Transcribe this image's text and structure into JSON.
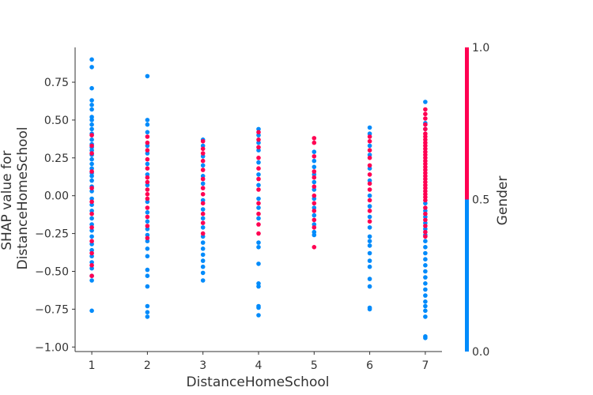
{
  "chart_data": {
    "type": "scatter",
    "xlabel": "DistanceHomeSchool",
    "ylabel": "SHAP value for\nDistanceHomeSchool",
    "xticks": [
      1,
      2,
      3,
      4,
      5,
      6,
      7
    ],
    "yticks": [
      -1.0,
      -0.75,
      -0.5,
      -0.25,
      0.0,
      0.25,
      0.5,
      0.75
    ],
    "ytick_labels": [
      "−1.00",
      "−0.75",
      "−0.50",
      "−0.25",
      "0.00",
      "0.25",
      "0.50",
      "0.75"
    ],
    "xlim": [
      0.7,
      7.3
    ],
    "ylim": [
      -1.03,
      0.98
    ],
    "colorbar": {
      "label": "Gender",
      "ticks": [
        0.0,
        0.5,
        1.0
      ],
      "tick_labels": [
        "0.0",
        "0.5",
        "1.0"
      ],
      "low_color": "#008bfb",
      "high_color": "#ff0052"
    },
    "series": [
      {
        "gender": 0,
        "points": [
          [
            1,
            0.9
          ],
          [
            1,
            0.85
          ],
          [
            1,
            0.71
          ],
          [
            1,
            0.63
          ],
          [
            1,
            0.6
          ],
          [
            1,
            0.57
          ],
          [
            1,
            0.52
          ],
          [
            1,
            0.5
          ],
          [
            1,
            0.47
          ],
          [
            1,
            0.44
          ],
          [
            1,
            0.41
          ],
          [
            1,
            0.37
          ],
          [
            1,
            0.34
          ],
          [
            1,
            0.32
          ],
          [
            1,
            0.3
          ],
          [
            1,
            0.27
          ],
          [
            1,
            0.24
          ],
          [
            1,
            0.21
          ],
          [
            1,
            0.18
          ],
          [
            1,
            0.15
          ],
          [
            1,
            0.13
          ],
          [
            1,
            0.1
          ],
          [
            1,
            0.06
          ],
          [
            1,
            0.03
          ],
          [
            1,
            -0.02
          ],
          [
            1,
            -0.06
          ],
          [
            1,
            -0.1
          ],
          [
            1,
            -0.15
          ],
          [
            1,
            -0.19
          ],
          [
            1,
            -0.23
          ],
          [
            1,
            -0.27
          ],
          [
            1,
            -0.32
          ],
          [
            1,
            -0.36
          ],
          [
            1,
            -0.4
          ],
          [
            1,
            -0.44
          ],
          [
            1,
            -0.48
          ],
          [
            1,
            -0.53
          ],
          [
            1,
            -0.56
          ],
          [
            1,
            -0.76
          ],
          [
            2,
            0.79
          ],
          [
            2,
            0.5
          ],
          [
            2,
            0.47
          ],
          [
            2,
            0.42
          ],
          [
            2,
            0.33
          ],
          [
            2,
            0.28
          ],
          [
            2,
            0.21
          ],
          [
            2,
            0.14
          ],
          [
            2,
            0.07
          ],
          [
            2,
            -0.04
          ],
          [
            2,
            -0.11
          ],
          [
            2,
            -0.17
          ],
          [
            2,
            -0.22
          ],
          [
            2,
            -0.26
          ],
          [
            2,
            -0.3
          ],
          [
            2,
            -0.35
          ],
          [
            2,
            -0.4
          ],
          [
            2,
            -0.49
          ],
          [
            2,
            -0.53
          ],
          [
            2,
            -0.6
          ],
          [
            2,
            -0.73
          ],
          [
            2,
            -0.77
          ],
          [
            2,
            -0.8
          ],
          [
            3,
            0.37
          ],
          [
            3,
            0.33
          ],
          [
            3,
            0.26
          ],
          [
            3,
            0.2
          ],
          [
            3,
            0.13
          ],
          [
            3,
            0.08
          ],
          [
            3,
            -0.03
          ],
          [
            3,
            -0.09
          ],
          [
            3,
            -0.15
          ],
          [
            3,
            -0.21
          ],
          [
            3,
            -0.27
          ],
          [
            3,
            -0.31
          ],
          [
            3,
            -0.35
          ],
          [
            3,
            -0.39
          ],
          [
            3,
            -0.43
          ],
          [
            3,
            -0.47
          ],
          [
            3,
            -0.51
          ],
          [
            3,
            -0.56
          ],
          [
            4,
            0.44
          ],
          [
            4,
            0.4
          ],
          [
            4,
            0.35
          ],
          [
            4,
            0.3
          ],
          [
            4,
            0.22
          ],
          [
            4,
            0.14
          ],
          [
            4,
            0.07
          ],
          [
            4,
            -0.02
          ],
          [
            4,
            -0.08
          ],
          [
            4,
            -0.15
          ],
          [
            4,
            -0.31
          ],
          [
            4,
            -0.34
          ],
          [
            4,
            -0.45
          ],
          [
            4,
            -0.58
          ],
          [
            4,
            -0.6
          ],
          [
            4,
            -0.73
          ],
          [
            4,
            -0.74
          ],
          [
            4,
            -0.79
          ],
          [
            5,
            0.29
          ],
          [
            5,
            0.23
          ],
          [
            5,
            0.19
          ],
          [
            5,
            0.14
          ],
          [
            5,
            0.09
          ],
          [
            5,
            0.04
          ],
          [
            5,
            -0.02
          ],
          [
            5,
            -0.08
          ],
          [
            5,
            -0.13
          ],
          [
            5,
            -0.19
          ],
          [
            5,
            -0.24
          ],
          [
            5,
            -0.26
          ],
          [
            6,
            0.45
          ],
          [
            6,
            0.41
          ],
          [
            6,
            0.33
          ],
          [
            6,
            0.27
          ],
          [
            6,
            0.18
          ],
          [
            6,
            0.1
          ],
          [
            6,
            0.0
          ],
          [
            6,
            -0.07
          ],
          [
            6,
            -0.14
          ],
          [
            6,
            -0.21
          ],
          [
            6,
            -0.27
          ],
          [
            6,
            -0.3
          ],
          [
            6,
            -0.33
          ],
          [
            6,
            -0.38
          ],
          [
            6,
            -0.43
          ],
          [
            6,
            -0.47
          ],
          [
            6,
            -0.55
          ],
          [
            6,
            -0.6
          ],
          [
            6,
            -0.74
          ],
          [
            6,
            -0.75
          ],
          [
            7,
            0.62
          ],
          [
            7,
            0.48
          ],
          [
            7,
            0.44
          ],
          [
            7,
            -0.05
          ],
          [
            7,
            -0.1
          ],
          [
            7,
            -0.14
          ],
          [
            7,
            -0.18
          ],
          [
            7,
            -0.22
          ],
          [
            7,
            -0.26
          ],
          [
            7,
            -0.3
          ],
          [
            7,
            -0.34
          ],
          [
            7,
            -0.38
          ],
          [
            7,
            -0.42
          ],
          [
            7,
            -0.46
          ],
          [
            7,
            -0.5
          ],
          [
            7,
            -0.54
          ],
          [
            7,
            -0.58
          ],
          [
            7,
            -0.62
          ],
          [
            7,
            -0.66
          ],
          [
            7,
            -0.7
          ],
          [
            7,
            -0.73
          ],
          [
            7,
            -0.76
          ],
          [
            7,
            -0.8
          ],
          [
            7,
            -0.93
          ],
          [
            7,
            -0.94
          ]
        ]
      },
      {
        "gender": 1,
        "points": [
          [
            1,
            0.4
          ],
          [
            1,
            0.33
          ],
          [
            1,
            0.28
          ],
          [
            1,
            0.16
          ],
          [
            1,
            0.05
          ],
          [
            1,
            -0.04
          ],
          [
            1,
            -0.12
          ],
          [
            1,
            -0.21
          ],
          [
            1,
            -0.3
          ],
          [
            1,
            -0.38
          ],
          [
            1,
            -0.46
          ],
          [
            1,
            -0.53
          ],
          [
            2,
            0.39
          ],
          [
            2,
            0.35
          ],
          [
            2,
            0.3
          ],
          [
            2,
            0.24
          ],
          [
            2,
            0.18
          ],
          [
            2,
            0.12
          ],
          [
            2,
            0.09
          ],
          [
            2,
            0.04
          ],
          [
            2,
            0.01
          ],
          [
            2,
            -0.02
          ],
          [
            2,
            -0.08
          ],
          [
            2,
            -0.14
          ],
          [
            2,
            -0.2
          ],
          [
            2,
            -0.28
          ],
          [
            3,
            0.36
          ],
          [
            3,
            0.31
          ],
          [
            3,
            0.28
          ],
          [
            3,
            0.23
          ],
          [
            3,
            0.17
          ],
          [
            3,
            0.11
          ],
          [
            3,
            0.05
          ],
          [
            3,
            0.01
          ],
          [
            3,
            -0.05
          ],
          [
            3,
            -0.12
          ],
          [
            3,
            -0.18
          ],
          [
            3,
            -0.25
          ],
          [
            4,
            0.42
          ],
          [
            4,
            0.37
          ],
          [
            4,
            0.32
          ],
          [
            4,
            0.25
          ],
          [
            4,
            0.18
          ],
          [
            4,
            0.11
          ],
          [
            4,
            0.04
          ],
          [
            4,
            -0.05
          ],
          [
            4,
            -0.12
          ],
          [
            4,
            -0.19
          ],
          [
            4,
            -0.25
          ],
          [
            5,
            0.38
          ],
          [
            5,
            0.35
          ],
          [
            5,
            0.26
          ],
          [
            5,
            0.16
          ],
          [
            5,
            0.12
          ],
          [
            5,
            0.06
          ],
          [
            5,
            0.0
          ],
          [
            5,
            -0.05
          ],
          [
            5,
            -0.1
          ],
          [
            5,
            -0.16
          ],
          [
            5,
            -0.21
          ],
          [
            5,
            -0.34
          ],
          [
            6,
            0.39
          ],
          [
            6,
            0.36
          ],
          [
            6,
            0.3
          ],
          [
            6,
            0.25
          ],
          [
            6,
            0.2
          ],
          [
            6,
            0.14
          ],
          [
            6,
            0.08
          ],
          [
            6,
            0.04
          ],
          [
            6,
            -0.03
          ],
          [
            6,
            -0.1
          ],
          [
            6,
            -0.17
          ],
          [
            7,
            0.57
          ],
          [
            7,
            0.54
          ],
          [
            7,
            0.51
          ],
          [
            7,
            0.47
          ],
          [
            7,
            0.44
          ],
          [
            7,
            0.41
          ],
          [
            7,
            0.39
          ],
          [
            7,
            0.37
          ],
          [
            7,
            0.35
          ],
          [
            7,
            0.33
          ],
          [
            7,
            0.31
          ],
          [
            7,
            0.29
          ],
          [
            7,
            0.27
          ],
          [
            7,
            0.25
          ],
          [
            7,
            0.23
          ],
          [
            7,
            0.21
          ],
          [
            7,
            0.19
          ],
          [
            7,
            0.17
          ],
          [
            7,
            0.15
          ],
          [
            7,
            0.13
          ],
          [
            7,
            0.11
          ],
          [
            7,
            0.09
          ],
          [
            7,
            0.07
          ],
          [
            7,
            0.05
          ],
          [
            7,
            0.03
          ],
          [
            7,
            0.01
          ],
          [
            7,
            -0.01
          ],
          [
            7,
            -0.03
          ],
          [
            7,
            -0.08
          ],
          [
            7,
            -0.12
          ],
          [
            7,
            -0.16
          ],
          [
            7,
            -0.2
          ],
          [
            7,
            -0.24
          ],
          [
            7,
            -0.27
          ]
        ]
      }
    ]
  }
}
